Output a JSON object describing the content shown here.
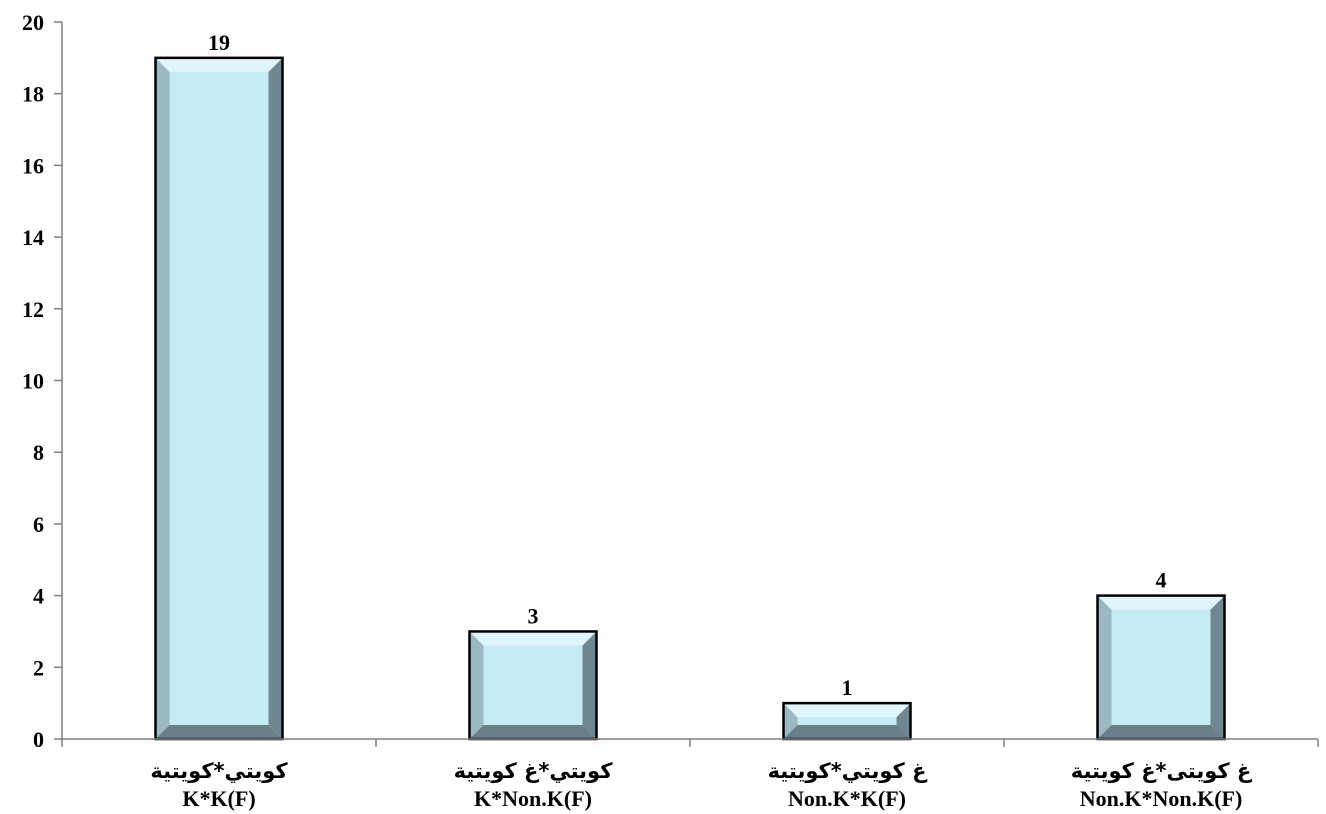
{
  "chart_data": {
    "type": "bar",
    "categories": [
      {
        "label_ar": "كويتي*كويتية",
        "label_en": "K*K(F)"
      },
      {
        "label_ar": "كويتي*غ كويتية",
        "label_en": "K*Non.K(F)"
      },
      {
        "label_ar": "غ كويتي*كويتية",
        "label_en": "Non.K*K(F)"
      },
      {
        "label_ar": "غ كويتى*غ كويتية",
        "label_en": "Non.K*Non.K(F)"
      }
    ],
    "values": [
      19,
      3,
      1,
      4
    ],
    "data_labels": [
      "19",
      "3",
      "1",
      "4"
    ],
    "yticks": [
      "0",
      "2",
      "4",
      "6",
      "8",
      "10",
      "12",
      "14",
      "16",
      "18",
      "20"
    ],
    "ylim": [
      0,
      20
    ],
    "title": "",
    "xlabel": "",
    "ylabel": "",
    "grid": false,
    "legend": "none",
    "colors": {
      "bar_face": "#c5ebf5",
      "bar_left_bevel": "#9cb8c2",
      "bar_right_bevel": "#6f8790",
      "bar_top_bevel": "#def6fb",
      "bar_bottom_bevel": "#6a8089",
      "bar_outline": "#000000",
      "axis": "#7f7f7f"
    }
  }
}
